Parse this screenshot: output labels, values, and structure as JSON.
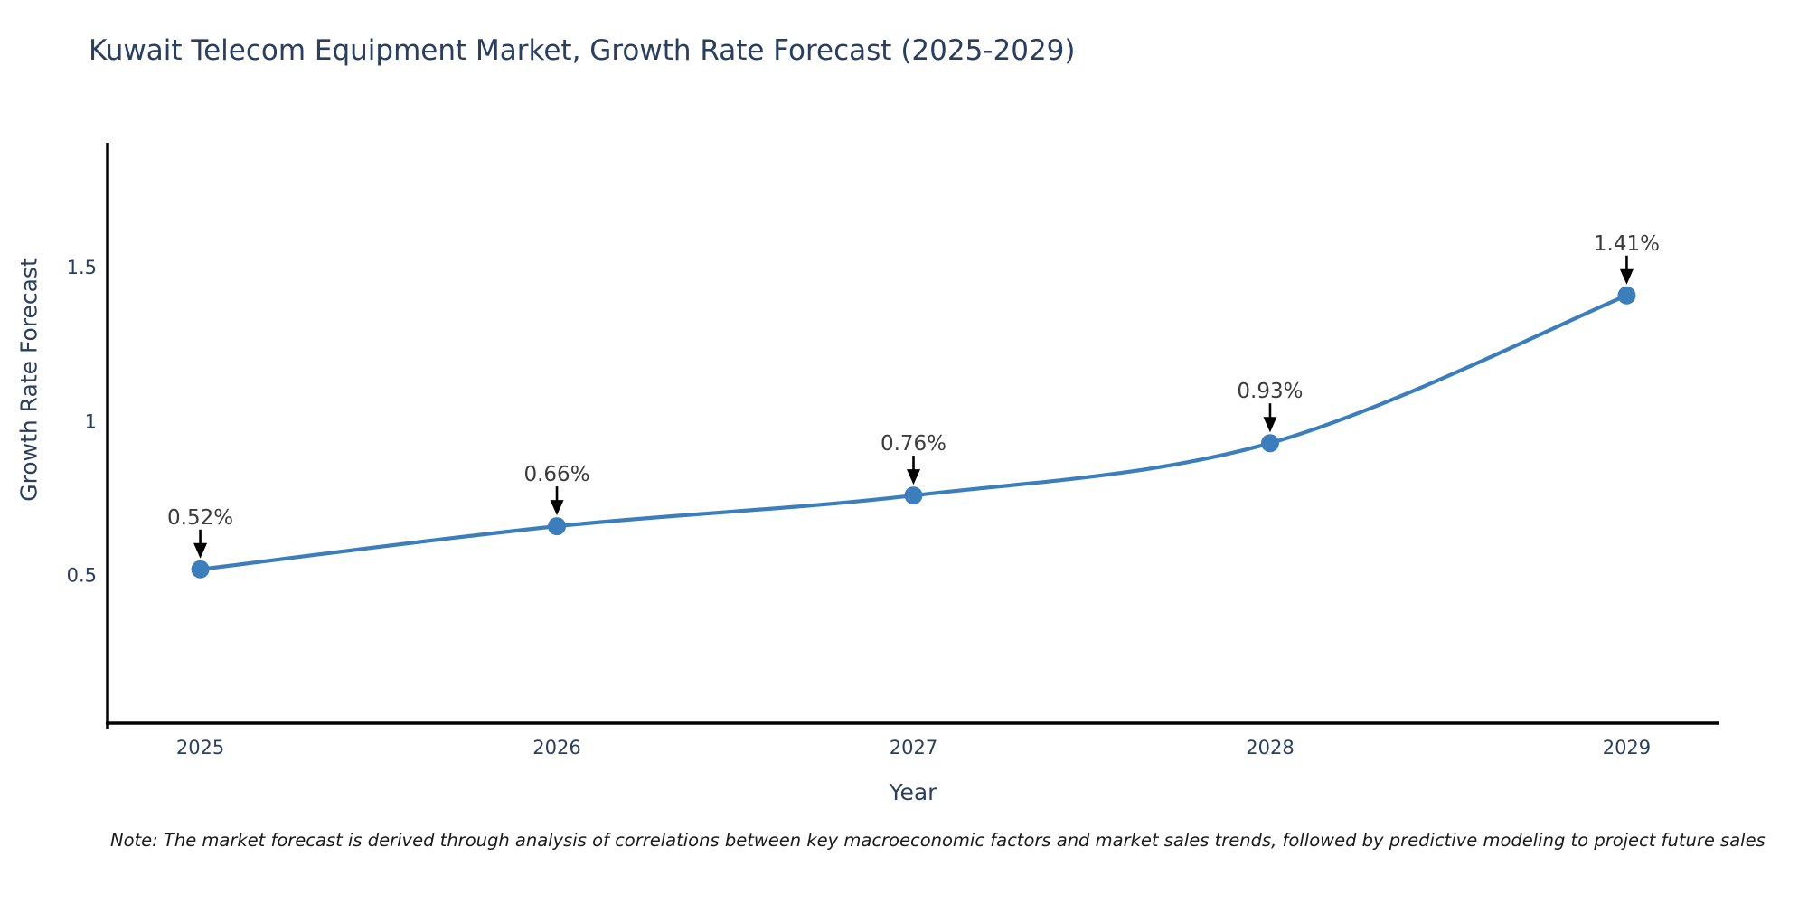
{
  "chart": {
    "title": "Kuwait Telecom Equipment Market, Growth Rate Forecast (2025-2029)",
    "xlabel": "Year",
    "ylabel": "Growth Rate Forecast"
  },
  "note": {
    "text": "Note: The market forecast is derived through analysis of correlations between key macroeconomic factors and market sales trends, followed by predictive modeling to project future sales"
  },
  "chart_data": {
    "type": "line",
    "title": "Kuwait Telecom Equipment Market, Growth Rate Forecast (2025-2029)",
    "xlabel": "Year",
    "ylabel": "Growth Rate Forecast",
    "x": [
      2025,
      2026,
      2027,
      2028,
      2029
    ],
    "series": [
      {
        "name": "Growth Rate Forecast",
        "values": [
          0.52,
          0.66,
          0.76,
          0.93,
          1.41
        ]
      }
    ],
    "point_labels": [
      "0.52%",
      "0.66%",
      "0.76%",
      "0.93%",
      "1.41%"
    ],
    "xticks": [
      2025,
      2026,
      2027,
      2028,
      2029
    ],
    "xtick_labels": [
      "2025",
      "2026",
      "2027",
      "2028",
      "2029"
    ],
    "yticks": [
      0.5,
      1,
      1.5
    ],
    "ytick_labels": [
      "0.5",
      "1",
      "1.5"
    ],
    "xlim": [
      2024.74,
      2029.26
    ],
    "ylim": [
      0.02,
      1.9
    ],
    "grid": false,
    "legend": "none",
    "line_shape": "spline",
    "colors": {
      "line": "#3C7EBB",
      "marker": "#3C7EBB",
      "axis": "#000000",
      "tick_text": "#2a3f5f",
      "annotation_text": "#3b3b3b",
      "arrow": "#000000",
      "title_text": "#2a3f5f",
      "background": "#ffffff"
    }
  }
}
